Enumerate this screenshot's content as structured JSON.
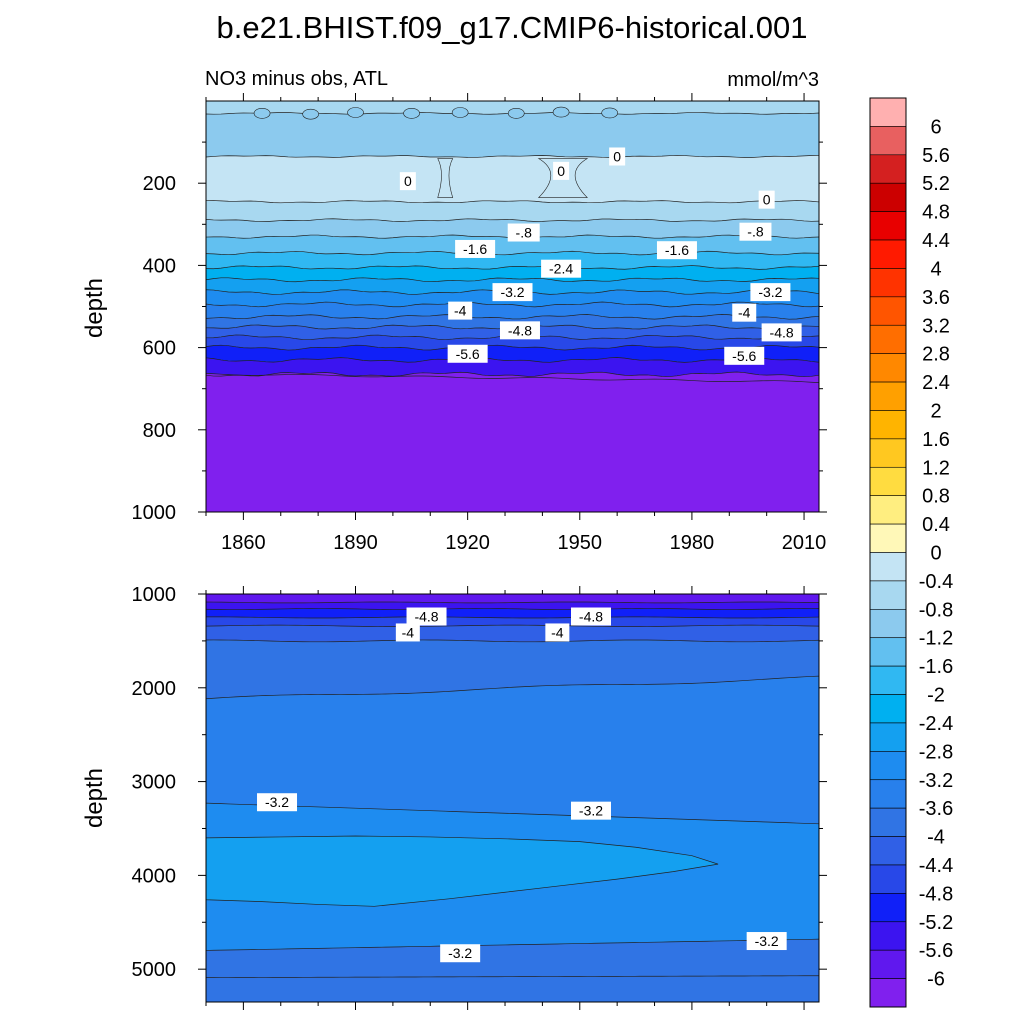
{
  "chart_data": {
    "type": "contour",
    "title": "b.e21.BHIST.f09_g17.CMIP6-historical.001",
    "units": "mmol/m^3",
    "colorbar": {
      "levels": [
        6,
        5.6,
        5.2,
        4.8,
        4.4,
        4,
        3.6,
        3.2,
        2.8,
        2.4,
        2,
        1.6,
        1.2,
        0.8,
        0.4,
        0,
        -0.4,
        -0.8,
        -1.2,
        -1.6,
        -2,
        -2.4,
        -2.8,
        -3.2,
        -3.6,
        -4,
        -4.4,
        -4.8,
        -5.2,
        -5.6,
        -6
      ],
      "labels": [
        "6",
        "5.6",
        "5.2",
        "4.8",
        "4.4",
        "4",
        "3.6",
        "3.2",
        "2.8",
        "2.4",
        "2",
        "1.6",
        "1.2",
        "0.8",
        "0.4",
        "0",
        "-0.4",
        "-0.8",
        "-1.2",
        "-1.6",
        "-2",
        "-2.4",
        "-2.8",
        "-3.2",
        "-3.6",
        "-4",
        "-4.4",
        "-4.8",
        "-5.2",
        "-5.6",
        "-6"
      ],
      "colors": [
        "#ffb0b0",
        "#e86060",
        "#d42020",
        "#cc0000",
        "#e80000",
        "#ff1a00",
        "#ff3300",
        "#ff5500",
        "#ff6e00",
        "#ff8800",
        "#ffa000",
        "#ffb400",
        "#ffc820",
        "#ffdc40",
        "#ffee80",
        "#fff8b8",
        "#c4e4f4",
        "#a8d8f0",
        "#8ccaee",
        "#62c0f0",
        "#30b8f2",
        "#00b0f0",
        "#14a0f0",
        "#1e8cf0",
        "#2880ec",
        "#3074e4",
        "#3060e6",
        "#2848e8",
        "#1020f8",
        "#3c14f0",
        "#6018ee",
        "#8020ee"
      ]
    },
    "panels": [
      {
        "subtitle": "NO3 minus obs, ATL",
        "units_label": "mmol/m^3",
        "ylabel": "depth",
        "xlabel": "",
        "xlim": [
          1850,
          2014
        ],
        "ylim": [
          0,
          1000
        ],
        "x_ticks": [
          1860,
          1890,
          1920,
          1950,
          1980,
          2010
        ],
        "x_tick_labels": [
          "1860",
          "1890",
          "1920",
          "1950",
          "1980",
          "2010"
        ],
        "y_ticks": [
          200,
          400,
          600,
          800,
          1000
        ],
        "y_tick_labels": [
          "200",
          "400",
          "600",
          "800",
          "1000"
        ],
        "bands_depth_boundaries": [
          [
            0,
            30,
            -0.4
          ],
          [
            30,
            135,
            -0.8
          ],
          [
            135,
            245,
            0.0
          ],
          [
            245,
            290,
            -0.4
          ],
          [
            290,
            330,
            -0.8
          ],
          [
            330,
            370,
            -1.2
          ],
          [
            370,
            405,
            -1.6
          ],
          [
            405,
            435,
            -2.0
          ],
          [
            435,
            465,
            -2.4
          ],
          [
            465,
            495,
            -2.8
          ],
          [
            495,
            525,
            -3.2
          ],
          [
            525,
            550,
            -3.6
          ],
          [
            550,
            575,
            -4.0
          ],
          [
            575,
            600,
            -4.4
          ],
          [
            600,
            630,
            -4.8
          ],
          [
            630,
            665,
            -5.2
          ],
          [
            665,
            1000,
            -6.0
          ]
        ],
        "contour_labels": [
          {
            "text": "0",
            "x": 1904,
            "y": 195
          },
          {
            "text": "0",
            "x": 1945,
            "y": 170
          },
          {
            "text": "0",
            "x": 1960,
            "y": 135
          },
          {
            "text": "0",
            "x": 2000,
            "y": 240
          },
          {
            "text": "-.8",
            "x": 1935,
            "y": 320
          },
          {
            "text": "-.8",
            "x": 1997,
            "y": 318
          },
          {
            "text": "-1.6",
            "x": 1922,
            "y": 360
          },
          {
            "text": "-1.6",
            "x": 1976,
            "y": 363
          },
          {
            "text": "-2.4",
            "x": 1945,
            "y": 408
          },
          {
            "text": "-3.2",
            "x": 1932,
            "y": 465
          },
          {
            "text": "-3.2",
            "x": 2001,
            "y": 465
          },
          {
            "text": "-4",
            "x": 1918,
            "y": 510
          },
          {
            "text": "-4",
            "x": 1994,
            "y": 515
          },
          {
            "text": "-4.8",
            "x": 1934,
            "y": 558
          },
          {
            "text": "-4.8",
            "x": 2004,
            "y": 563
          },
          {
            "text": "-5.6",
            "x": 1920,
            "y": 615
          },
          {
            "text": "-5.6",
            "x": 1994,
            "y": 620
          }
        ]
      },
      {
        "subtitle": "",
        "ylabel": "depth",
        "xlabel": "",
        "xlim": [
          1850,
          2014
        ],
        "ylim": [
          1000,
          5350
        ],
        "y_ticks": [
          1000,
          2000,
          3000,
          4000,
          5000
        ],
        "y_tick_labels": [
          "1000",
          "2000",
          "3000",
          "4000",
          "5000"
        ],
        "contour_labels": [
          {
            "text": "-4.8",
            "x": 1909,
            "y": 1240
          },
          {
            "text": "-4.8",
            "x": 1953,
            "y": 1240
          },
          {
            "text": "-4",
            "x": 1904,
            "y": 1410
          },
          {
            "text": "-4",
            "x": 1944,
            "y": 1410
          },
          {
            "text": "-3.2",
            "x": 1869,
            "y": 3220
          },
          {
            "text": "-3.2",
            "x": 1953,
            "y": 3310
          },
          {
            "text": "-3.2",
            "x": 1918,
            "y": 4830
          },
          {
            "text": "-3.2",
            "x": 2000,
            "y": 4700
          }
        ]
      }
    ]
  }
}
